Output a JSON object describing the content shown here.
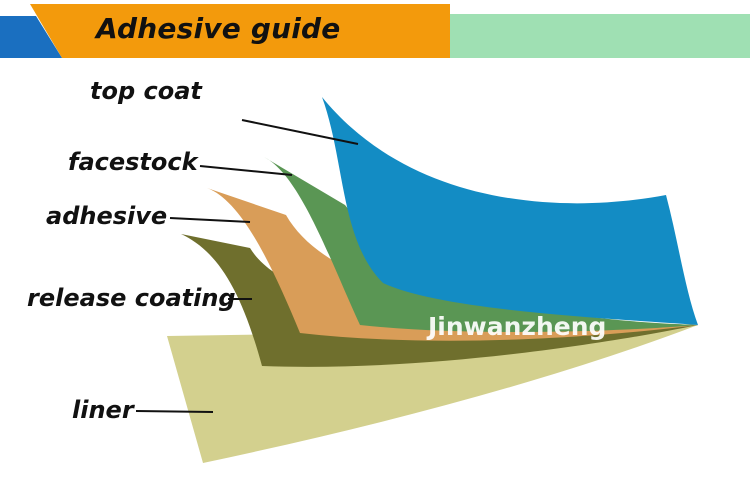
{
  "header": {
    "title": "Adhesive guide",
    "colors": {
      "blue": "#1a6fc0",
      "orange": "#f39a0c",
      "green": "#9fe0b3"
    }
  },
  "layers": [
    {
      "label": "top coat",
      "color": "#138cc4"
    },
    {
      "label": "facestock",
      "color": "#5a9654"
    },
    {
      "label": "adhesive",
      "color": "#d99d58"
    },
    {
      "label": "release coating",
      "color": "#6f6f2d"
    },
    {
      "label": "liner",
      "color": "#d3d08e"
    }
  ],
  "watermark": "Jinwanzheng"
}
